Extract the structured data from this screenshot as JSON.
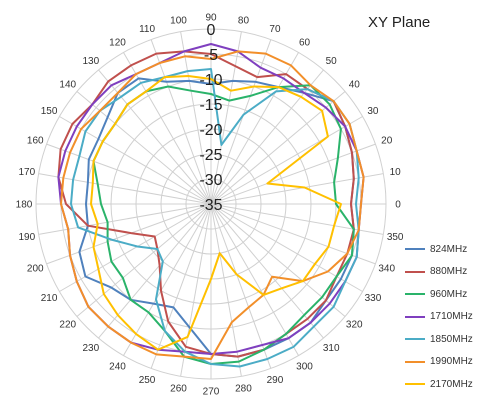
{
  "chart_data": {
    "type": "polar-line",
    "title": "XY  Plane",
    "radial_ticks": [
      0,
      -5,
      -10,
      -15,
      -20,
      -25,
      -30,
      -35
    ],
    "radial_range": [
      -35,
      0
    ],
    "angle_ticks": [
      0,
      10,
      20,
      30,
      40,
      50,
      60,
      70,
      80,
      90,
      100,
      110,
      120,
      130,
      140,
      150,
      160,
      170,
      180,
      190,
      200,
      210,
      220,
      230,
      240,
      250,
      260,
      270,
      280,
      290,
      300,
      310,
      320,
      330,
      340,
      350
    ],
    "angle_labels": [
      "0",
      "10",
      "20",
      "30",
      "40",
      "50",
      "60",
      "70",
      "80",
      "90",
      "100",
      "110",
      "120",
      "130",
      "140",
      "150",
      "160",
      "170",
      "180",
      "190",
      "200",
      "210",
      "220",
      "230",
      "240",
      "250",
      "260",
      "270",
      "280",
      "290",
      "300",
      "310",
      "320",
      "330",
      "340",
      "350"
    ],
    "legend_position": "right",
    "grid": true,
    "series": [
      {
        "name": "824MHz",
        "color": "#4f81bd",
        "angles": [
          0,
          10,
          20,
          30,
          40,
          50,
          60,
          70,
          80,
          90,
          100,
          110,
          120,
          130,
          140,
          150,
          160,
          170,
          180,
          190,
          200,
          210,
          220,
          230,
          240,
          250,
          260,
          270,
          280,
          290,
          300,
          310,
          320,
          330,
          340,
          350
        ],
        "values": [
          -7,
          -6,
          -5,
          -4,
          -3,
          -6,
          -8,
          -9,
          -10,
          -11,
          -10,
          -9,
          -6,
          -6,
          -8,
          -9,
          -9,
          -10,
          -10,
          -10,
          -7,
          -6,
          -9,
          -10,
          -12,
          -13,
          -10,
          -5,
          -4,
          -4,
          -4,
          -4,
          -5,
          -5,
          -5,
          -6
        ]
      },
      {
        "name": "880MHz",
        "color": "#c0504d",
        "angles": [
          0,
          10,
          20,
          30,
          40,
          50,
          60,
          70,
          80,
          90,
          100,
          110,
          120,
          130,
          140,
          150,
          160,
          170,
          180,
          190,
          200,
          210,
          220,
          230,
          240,
          250,
          260,
          270,
          280,
          290,
          300,
          310,
          320,
          330,
          340,
          350
        ],
        "values": [
          -7,
          -6,
          -5,
          -4,
          -3,
          -5,
          -5,
          -8,
          -7,
          -5,
          -4,
          -3,
          -3,
          -3,
          -4,
          -3,
          -3,
          -4,
          -6,
          -10,
          -18,
          -22,
          -21,
          -19,
          -15,
          -10,
          -6,
          -5,
          -4,
          -4,
          -5,
          -5,
          -5,
          -6,
          -6,
          -6
        ]
      },
      {
        "name": "960MHz",
        "color": "#2ab36a",
        "angles": [
          0,
          10,
          20,
          30,
          40,
          50,
          60,
          70,
          80,
          90,
          100,
          110,
          120,
          130,
          140,
          150,
          160,
          170,
          180,
          190,
          200,
          210,
          220,
          230,
          240,
          250,
          260,
          270,
          280,
          290,
          300,
          310,
          320,
          330,
          340,
          350
        ],
        "values": [
          -10,
          -10,
          -8,
          -5,
          -4,
          -4,
          -8,
          -12,
          -14,
          -13,
          -12,
          -10,
          -9,
          -9,
          -10,
          -10,
          -10,
          -12,
          -13,
          -14,
          -13,
          -12,
          -12,
          -10,
          -10,
          -8,
          -4,
          -3,
          -3,
          -4,
          -5,
          -6,
          -6,
          -6,
          -5,
          -6
        ]
      },
      {
        "name": "1710MHz",
        "color": "#7f3fbf",
        "angles": [
          0,
          10,
          20,
          30,
          40,
          50,
          60,
          70,
          80,
          90,
          100,
          110,
          120,
          130,
          140,
          150,
          160,
          170,
          180,
          190,
          200,
          210,
          220,
          230,
          240,
          250,
          260,
          270,
          280,
          290,
          300,
          310,
          320,
          330,
          340,
          350
        ],
        "values": [
          -5,
          -4,
          -4,
          -4,
          -5,
          -6,
          -6,
          -6,
          -4,
          -3,
          -4,
          -5,
          -5,
          -4,
          -4,
          -4,
          -4,
          -4,
          -5,
          -6,
          -5,
          -4,
          -3,
          -3,
          -3,
          -4,
          -5,
          -5,
          -5,
          -5,
          -4,
          -4,
          -4,
          -4,
          -4,
          -5
        ]
      },
      {
        "name": "1850MHz",
        "color": "#4bacc6",
        "angles": [
          0,
          10,
          20,
          30,
          40,
          50,
          60,
          70,
          80,
          90,
          100,
          110,
          120,
          130,
          140,
          150,
          160,
          170,
          180,
          190,
          200,
          210,
          220,
          230,
          240,
          250,
          260,
          270,
          280,
          290,
          300,
          310,
          320,
          330,
          340,
          350
        ],
        "values": [
          -6,
          -5,
          -4,
          -3,
          -3,
          -5,
          -9,
          -16,
          -23,
          -8,
          -8,
          -8,
          -7,
          -7,
          -6,
          -6,
          -7,
          -7,
          -7,
          -8,
          -14,
          -18,
          -21,
          -20,
          -13,
          -8,
          -5,
          -3,
          -2,
          -2,
          -2,
          -3,
          -3,
          -4,
          -4,
          -5
        ]
      },
      {
        "name": "1990MHz",
        "color": "#f28f2a",
        "angles": [
          0,
          10,
          20,
          30,
          40,
          50,
          60,
          70,
          80,
          90,
          100,
          110,
          120,
          130,
          140,
          150,
          160,
          170,
          180,
          190,
          200,
          210,
          220,
          230,
          240,
          250,
          260,
          270,
          280,
          290,
          300,
          310,
          320,
          330,
          340,
          350
        ],
        "values": [
          -5,
          -4,
          -4,
          -3,
          -3,
          -4,
          -3,
          -3,
          -4,
          -6,
          -5,
          -5,
          -5,
          -6,
          -6,
          -5,
          -5,
          -5,
          -5,
          -6,
          -5,
          -4,
          -3,
          -3,
          -3,
          -3,
          -4,
          -4,
          -11,
          -13,
          -14,
          -16,
          -11,
          -8,
          -6,
          -5
        ]
      },
      {
        "name": "2170MHz",
        "color": "#ffc000",
        "angles": [
          0,
          10,
          20,
          30,
          40,
          50,
          60,
          70,
          80,
          90,
          100,
          110,
          120,
          130,
          140,
          150,
          160,
          170,
          180,
          190,
          200,
          210,
          220,
          230,
          240,
          250,
          260,
          270,
          280,
          290,
          300,
          310,
          320,
          330,
          340,
          350
        ],
        "values": [
          -9,
          -16,
          -23,
          -8,
          -6,
          -7,
          -8,
          -10,
          -12,
          -10,
          -9,
          -8,
          -9,
          -9,
          -10,
          -10,
          -10,
          -11,
          -11,
          -12,
          -10,
          -9,
          -7,
          -6,
          -5,
          -4,
          -8,
          -20,
          -25,
          -20,
          -14,
          -13,
          -11,
          -11,
          -10,
          -10
        ]
      }
    ]
  }
}
